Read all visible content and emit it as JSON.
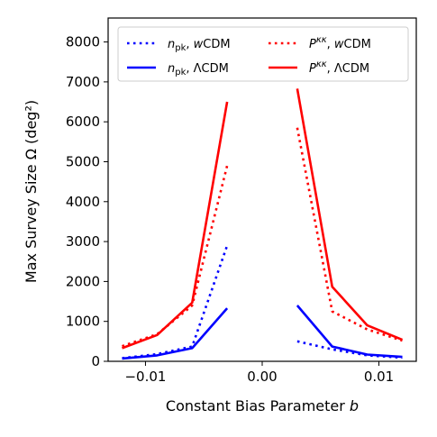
{
  "chart_data": {
    "type": "line",
    "title": "",
    "xlabel": "Constant Bias Parameter b",
    "ylabel": "Max Survey Size Ω (deg²)",
    "xlim": [
      -0.0132,
      0.0132
    ],
    "ylim": [
      0,
      8600
    ],
    "xticks": [
      -0.01,
      0.0,
      0.01
    ],
    "xtick_labels": [
      "−0.01",
      "0.00",
      "0.01"
    ],
    "yticks": [
      0,
      1000,
      2000,
      3000,
      4000,
      5000,
      6000,
      7000,
      8000
    ],
    "ytick_labels": [
      "0",
      "1000",
      "2000",
      "3000",
      "4000",
      "5000",
      "6000",
      "7000",
      "8000"
    ],
    "grid": false,
    "legend_position": "top",
    "series": [
      {
        "name": "n_pk, wCDM",
        "color": "#0000ff",
        "linestyle": "dotted",
        "segments": [
          {
            "x": [
              -0.012,
              -0.009,
              -0.006,
              -0.003
            ],
            "y": [
              80,
              180,
              370,
              2900
            ]
          },
          {
            "x": [
              0.003,
              0.006,
              0.009,
              0.012
            ],
            "y": [
              500,
              300,
              150,
              90
            ]
          }
        ]
      },
      {
        "name": "n_pk, ΛCDM",
        "color": "#0000ff",
        "linestyle": "solid",
        "segments": [
          {
            "x": [
              -0.012,
              -0.009,
              -0.006,
              -0.003
            ],
            "y": [
              70,
              150,
              330,
              1330
            ]
          },
          {
            "x": [
              0.003,
              0.006,
              0.009,
              0.012
            ],
            "y": [
              1400,
              370,
              170,
              110
            ]
          }
        ]
      },
      {
        "name": "P^κκ, wCDM",
        "color": "#ff0000",
        "linestyle": "dotted",
        "segments": [
          {
            "x": [
              -0.012,
              -0.009,
              -0.006,
              -0.003
            ],
            "y": [
              380,
              680,
              1400,
              4900
            ]
          },
          {
            "x": [
              0.003,
              0.006,
              0.009,
              0.012
            ],
            "y": [
              5850,
              1250,
              800,
              520
            ]
          }
        ]
      },
      {
        "name": "P^κκ, ΛCDM",
        "color": "#ff0000",
        "linestyle": "solid",
        "segments": [
          {
            "x": [
              -0.012,
              -0.009,
              -0.006,
              -0.003
            ],
            "y": [
              330,
              660,
              1470,
              6500
            ]
          },
          {
            "x": [
              0.003,
              0.006,
              0.009,
              0.012
            ],
            "y": [
              6830,
              1870,
              900,
              540
            ]
          }
        ]
      }
    ],
    "legend": [
      {
        "series": 0,
        "pre": "n",
        "sub": "pk",
        "mid": ", ",
        "italic": "w",
        "post": "CDM"
      },
      {
        "series": 1,
        "pre": "n",
        "sub": "pk",
        "mid": ", ",
        "italic": "",
        "post": "ΛCDM"
      },
      {
        "series": 2,
        "pre": "P",
        "sup": "κκ",
        "mid": ", ",
        "italic": "w",
        "post": "CDM"
      },
      {
        "series": 3,
        "pre": "P",
        "sup": "κκ",
        "mid": ", ",
        "italic": "",
        "post": "ΛCDM"
      }
    ]
  }
}
